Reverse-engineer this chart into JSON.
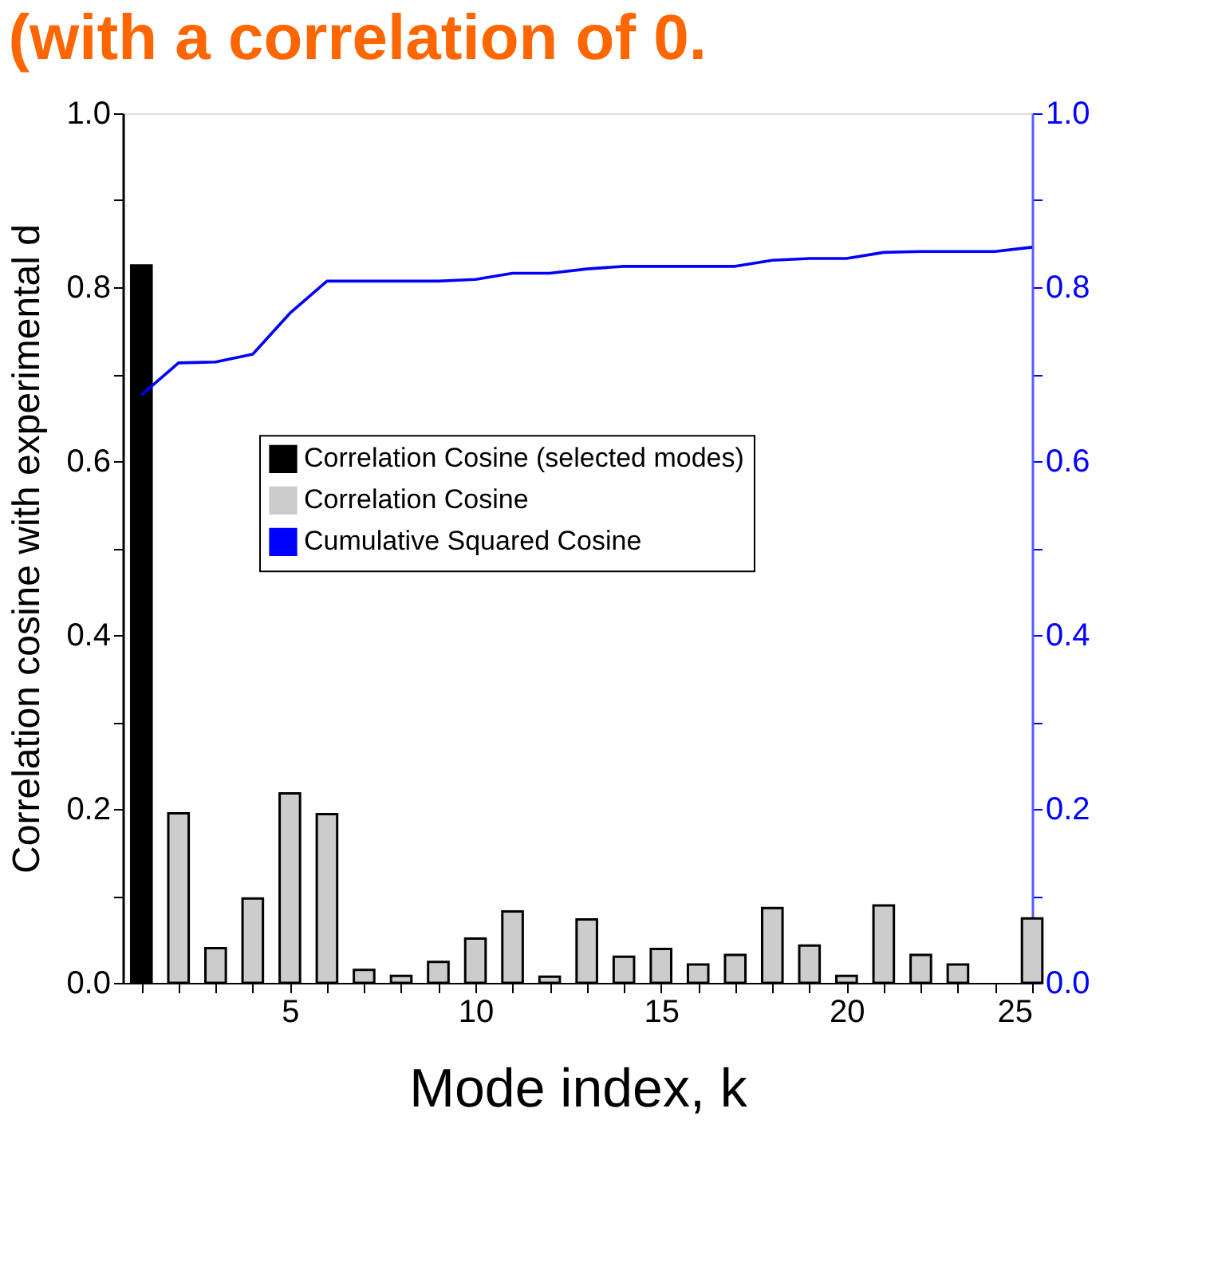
{
  "chart_data": {
    "type": "bar",
    "title": "(with a correlation of 0.",
    "xlabel": "Mode index, k",
    "ylabel": "Correlation cosine with experimental d",
    "x": [
      1,
      2,
      3,
      4,
      5,
      6,
      7,
      8,
      9,
      10,
      11,
      12,
      13,
      14,
      15,
      16,
      17,
      18,
      19,
      20,
      21,
      22,
      23,
      24,
      25
    ],
    "series": [
      {
        "name": "Correlation Cosine (selected modes)",
        "color": "#000000",
        "values": [
          0.825,
          null,
          null,
          null,
          null,
          null,
          null,
          null,
          null,
          null,
          null,
          null,
          null,
          null,
          null,
          null,
          null,
          null,
          null,
          null,
          null,
          null,
          null,
          null,
          null
        ]
      },
      {
        "name": "Correlation Cosine",
        "color": "#cccccc",
        "values": [
          null,
          0.195,
          0.04,
          0.097,
          0.218,
          0.194,
          0.015,
          0.008,
          0.024,
          0.051,
          0.082,
          0.007,
          0.073,
          0.03,
          0.039,
          0.021,
          0.032,
          0.086,
          0.043,
          0.008,
          0.089,
          0.032,
          0.021,
          null,
          0.074
        ]
      },
      {
        "name": "Cumulative Squared Cosine",
        "type": "line",
        "axis": "y2",
        "color": "#0000ff",
        "values": [
          0.676,
          0.713,
          0.714,
          0.723,
          0.77,
          0.807,
          0.807,
          0.807,
          0.807,
          0.809,
          0.816,
          0.816,
          0.821,
          0.824,
          0.824,
          0.824,
          0.824,
          0.831,
          0.833,
          0.833,
          0.84,
          0.841,
          0.841,
          0.841,
          0.846
        ]
      }
    ],
    "xlim": [
      0.5,
      25
    ],
    "xticks": [
      {
        "value": 1,
        "label": null
      },
      {
        "value": 2,
        "label": null
      },
      {
        "value": 3,
        "label": null
      },
      {
        "value": 4,
        "label": null
      },
      5,
      {
        "value": 6,
        "label": null
      },
      {
        "value": 7,
        "label": null
      },
      {
        "value": 8,
        "label": null
      },
      {
        "value": 9,
        "label": null
      },
      10,
      {
        "value": 11,
        "label": null
      },
      {
        "value": 12,
        "label": null
      },
      {
        "value": 13,
        "label": null
      },
      {
        "value": 14,
        "label": null
      },
      15,
      {
        "value": 16,
        "label": null
      },
      {
        "value": 17,
        "label": null
      },
      {
        "value": 18,
        "label": null
      },
      {
        "value": 19,
        "label": null
      },
      20,
      {
        "value": 21,
        "label": null
      },
      {
        "value": 22,
        "label": null
      },
      {
        "value": 23,
        "label": null
      },
      {
        "value": 24,
        "label": null
      },
      25
    ],
    "ylim": [
      0,
      1
    ],
    "yticks": [
      {
        "value": 0,
        "label": "0.0"
      },
      {
        "value": 0.1,
        "label": null
      },
      {
        "value": 0.2,
        "label": "0.2"
      },
      {
        "value": 0.3,
        "label": null
      },
      {
        "value": 0.4,
        "label": "0.4"
      },
      {
        "value": 0.5,
        "label": null
      },
      {
        "value": 0.6,
        "label": "0.6"
      },
      {
        "value": 0.7,
        "label": null
      },
      {
        "value": 0.8,
        "label": "0.8"
      },
      {
        "value": 0.9,
        "label": null
      },
      {
        "value": 1,
        "label": "1.0"
      }
    ],
    "y2lim": [
      0,
      1
    ],
    "y2ticks": [
      {
        "value": 0,
        "label": "0.0"
      },
      {
        "value": 0.1,
        "label": null
      },
      {
        "value": 0.2,
        "label": "0.2"
      },
      {
        "value": 0.3,
        "label": null
      },
      {
        "value": 0.4,
        "label": "0.4"
      },
      {
        "value": 0.5,
        "label": null
      },
      {
        "value": 0.6,
        "label": "0.6"
      },
      {
        "value": 0.7,
        "label": null
      },
      {
        "value": 0.8,
        "label": "0.8"
      },
      {
        "value": 0.9,
        "label": null
      },
      {
        "value": 1,
        "label": "1.0"
      }
    ],
    "legend": "center",
    "grid": false,
    "line_style": "solid",
    "marker": "none"
  }
}
